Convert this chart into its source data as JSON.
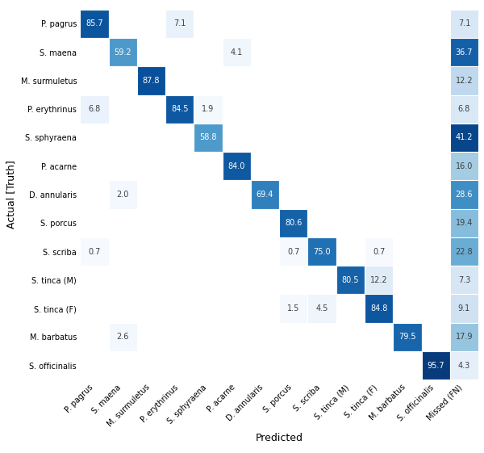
{
  "classes": [
    "P. pagrus",
    "S. maena",
    "M. surmuletus",
    "P. erythrinus",
    "S. sphyraena",
    "P. acarne",
    "D. annularis",
    "S. porcus",
    "S. scriba",
    "S. tinca (M)",
    "S. tinca (F)",
    "M. barbatus",
    "S. officinalis"
  ],
  "pred_labels": [
    "P. pagrus",
    "S. maena",
    "M. surmuletus",
    "P. erythrinus",
    "S. sphyraena",
    "P. acarne",
    "D. annularis",
    "S. porcus",
    "S. scriba",
    "S. tinca (M)",
    "S. tinca (F)",
    "M. barbatus",
    "S. officinalis",
    "Missed (FN)"
  ],
  "matrix": [
    [
      85.7,
      0,
      0,
      7.1,
      0,
      0,
      0,
      0,
      0,
      0,
      0,
      0,
      0,
      7.1
    ],
    [
      0,
      59.2,
      0,
      0,
      0,
      4.1,
      0,
      0,
      0,
      0,
      0,
      0,
      0,
      36.7
    ],
    [
      0,
      0,
      87.8,
      0,
      0,
      0,
      0,
      0,
      0,
      0,
      0,
      0,
      0,
      12.2
    ],
    [
      6.8,
      0,
      0,
      84.5,
      1.9,
      0,
      0,
      0,
      0,
      0,
      0,
      0,
      0,
      6.8
    ],
    [
      0,
      0,
      0,
      0,
      58.8,
      0,
      0,
      0,
      0,
      0,
      0,
      0,
      0,
      41.2
    ],
    [
      0,
      0,
      0,
      0,
      0,
      84.0,
      0,
      0,
      0,
      0,
      0,
      0,
      0,
      16.0
    ],
    [
      0,
      2.0,
      0,
      0,
      0,
      0,
      69.4,
      0,
      0,
      0,
      0,
      0,
      0,
      28.6
    ],
    [
      0,
      0,
      0,
      0,
      0,
      0,
      0,
      80.6,
      0,
      0,
      0,
      0,
      0,
      19.4
    ],
    [
      0.7,
      0,
      0,
      0,
      0,
      0,
      0,
      0.7,
      75.0,
      0,
      0.7,
      0,
      0,
      22.8
    ],
    [
      0,
      0,
      0,
      0,
      0,
      0,
      0,
      0,
      0,
      80.5,
      12.2,
      0,
      0,
      7.3
    ],
    [
      0,
      0,
      0,
      0,
      0,
      0,
      0,
      1.5,
      4.5,
      0,
      84.8,
      0,
      0,
      9.1
    ],
    [
      0,
      2.6,
      0,
      0,
      0,
      0,
      0,
      0,
      0,
      0,
      0,
      79.5,
      0,
      17.9
    ],
    [
      0,
      0,
      0,
      0,
      0,
      0,
      0,
      0,
      0,
      0,
      0,
      0,
      95.7,
      4.3
    ]
  ],
  "xlabel": "Predicted",
  "ylabel": "Actual [Truth]",
  "background_color": "#ffffff",
  "text_color_dark": "#404040",
  "text_color_light": "#ffffff",
  "fn_bg_color": "#cfe2f3",
  "zero_cell_color": "#ffffff",
  "main_vmax": 100,
  "fn_vmax": 45,
  "fontsize_cell": 7,
  "fontsize_tick": 7,
  "fontsize_label": 9
}
